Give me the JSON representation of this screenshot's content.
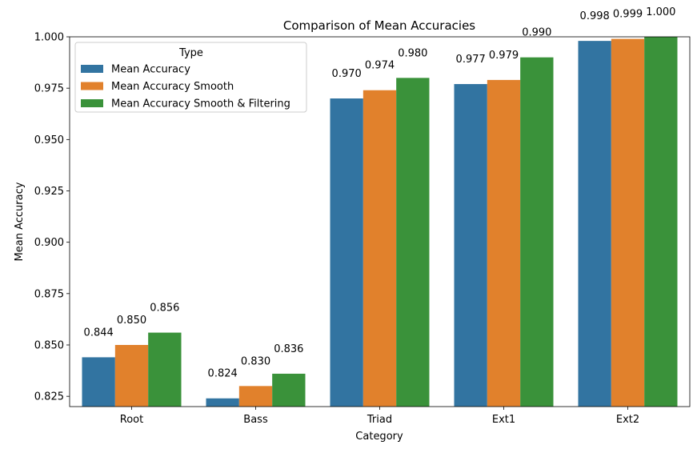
{
  "chart_data": {
    "type": "bar",
    "title": "Comparison of Mean Accuracies",
    "xlabel": "Category",
    "ylabel": "Mean Accuracy",
    "categories": [
      "Root",
      "Bass",
      "Triad",
      "Ext1",
      "Ext2"
    ],
    "ylim": [
      0.82,
      1.0
    ],
    "yticks": [
      "0.825",
      "0.850",
      "0.875",
      "0.900",
      "0.925",
      "0.950",
      "0.975",
      "1.000"
    ],
    "ytick_values": [
      0.825,
      0.85,
      0.875,
      0.9,
      0.925,
      0.95,
      0.975,
      1.0
    ],
    "legend_title": "Type",
    "legend_position": "upper-left",
    "grid": false,
    "series": [
      {
        "name": "Mean Accuracy",
        "color": "#3274a1",
        "values": [
          0.844,
          0.824,
          0.97,
          0.977,
          0.998
        ],
        "labels": [
          "0.844",
          "0.824",
          "0.970",
          "0.977",
          "0.998"
        ]
      },
      {
        "name": "Mean Accuracy Smooth",
        "color": "#e1812c",
        "values": [
          0.85,
          0.83,
          0.974,
          0.979,
          0.999
        ],
        "labels": [
          "0.850",
          "0.830",
          "0.974",
          "0.979",
          "0.999"
        ]
      },
      {
        "name": "Mean Accuracy Smooth & Filtering",
        "color": "#3a923a",
        "values": [
          0.856,
          0.836,
          0.98,
          0.99,
          1.0
        ],
        "labels": [
          "0.856",
          "0.836",
          "0.980",
          "0.990",
          "1.000"
        ]
      }
    ]
  }
}
